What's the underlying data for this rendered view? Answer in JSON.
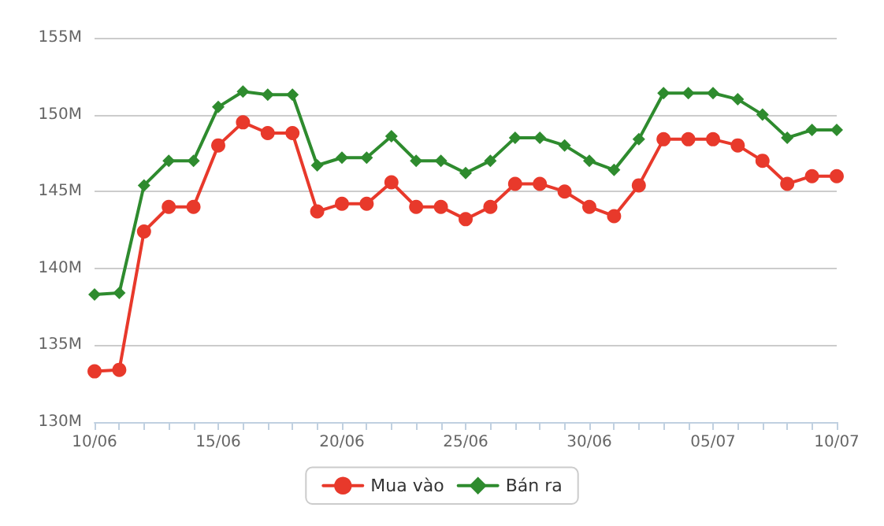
{
  "chart_data": {
    "type": "line",
    "categories": [
      "10/06",
      null,
      null,
      null,
      null,
      "15/06",
      null,
      null,
      null,
      null,
      "20/06",
      null,
      null,
      null,
      null,
      "25/06",
      null,
      null,
      null,
      null,
      "30/06",
      null,
      null,
      null,
      null,
      "05/07",
      null,
      null,
      null,
      null,
      "10/07"
    ],
    "series": [
      {
        "name": "Mua vào",
        "color": "#e8392b",
        "marker": "circle",
        "values": [
          133.3,
          133.4,
          142.4,
          144,
          144,
          148,
          149.5,
          148.8,
          148.8,
          143.7,
          144.2,
          144.2,
          145.6,
          144,
          144,
          143.2,
          144,
          145.5,
          145.5,
          145,
          144,
          143.4,
          145.4,
          148.4,
          148.4,
          148.4,
          148,
          147,
          145.5,
          146,
          146
        ]
      },
      {
        "name": "Bán ra",
        "color": "#2e8b2e",
        "marker": "diamond",
        "values": [
          138.3,
          138.4,
          145.4,
          147,
          147,
          150.5,
          151.5,
          151.3,
          151.3,
          146.7,
          147.2,
          147.2,
          148.6,
          147,
          147,
          146.2,
          147,
          148.5,
          148.5,
          148,
          147,
          146.4,
          148.4,
          151.4,
          151.4,
          151.4,
          151,
          150,
          148.5,
          149,
          149
        ]
      }
    ],
    "ylim": [
      130,
      155
    ],
    "yticks": [
      {
        "value": 130,
        "label": "130M"
      },
      {
        "value": 135,
        "label": "135M"
      },
      {
        "value": 140,
        "label": "140M"
      },
      {
        "value": 145,
        "label": "145M"
      },
      {
        "value": 150,
        "label": "150M"
      },
      {
        "value": 155,
        "label": "155M"
      }
    ],
    "grid": "y",
    "legend": "bottom",
    "line_style": "solid"
  }
}
